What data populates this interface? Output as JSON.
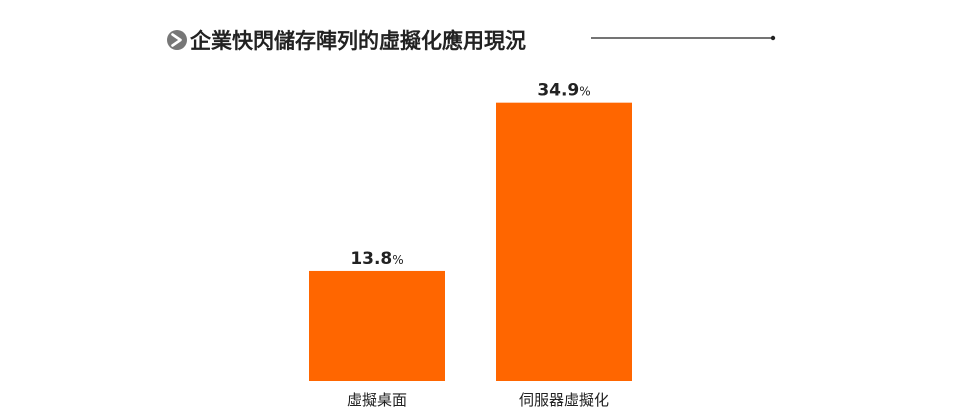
{
  "title": "企業快閃儲存陣列的虛擬化應用現況",
  "colors": {
    "bar": "#ff6600",
    "text": "#222222",
    "icon": "#777777",
    "rule": "#222222"
  },
  "icons": {
    "title_marker": "chevron-right-circle-icon"
  },
  "chart_data": {
    "type": "bar",
    "title": "企業快閃儲存陣列的虛擬化應用現況",
    "categories": [
      "虛擬桌面",
      "伺服器虛擬化"
    ],
    "values": [
      13.8,
      34.9
    ],
    "value_labels": [
      "13.8",
      "34.9"
    ],
    "unit": "%",
    "ylim": [
      0,
      40
    ],
    "grid": false,
    "legend": "none"
  }
}
